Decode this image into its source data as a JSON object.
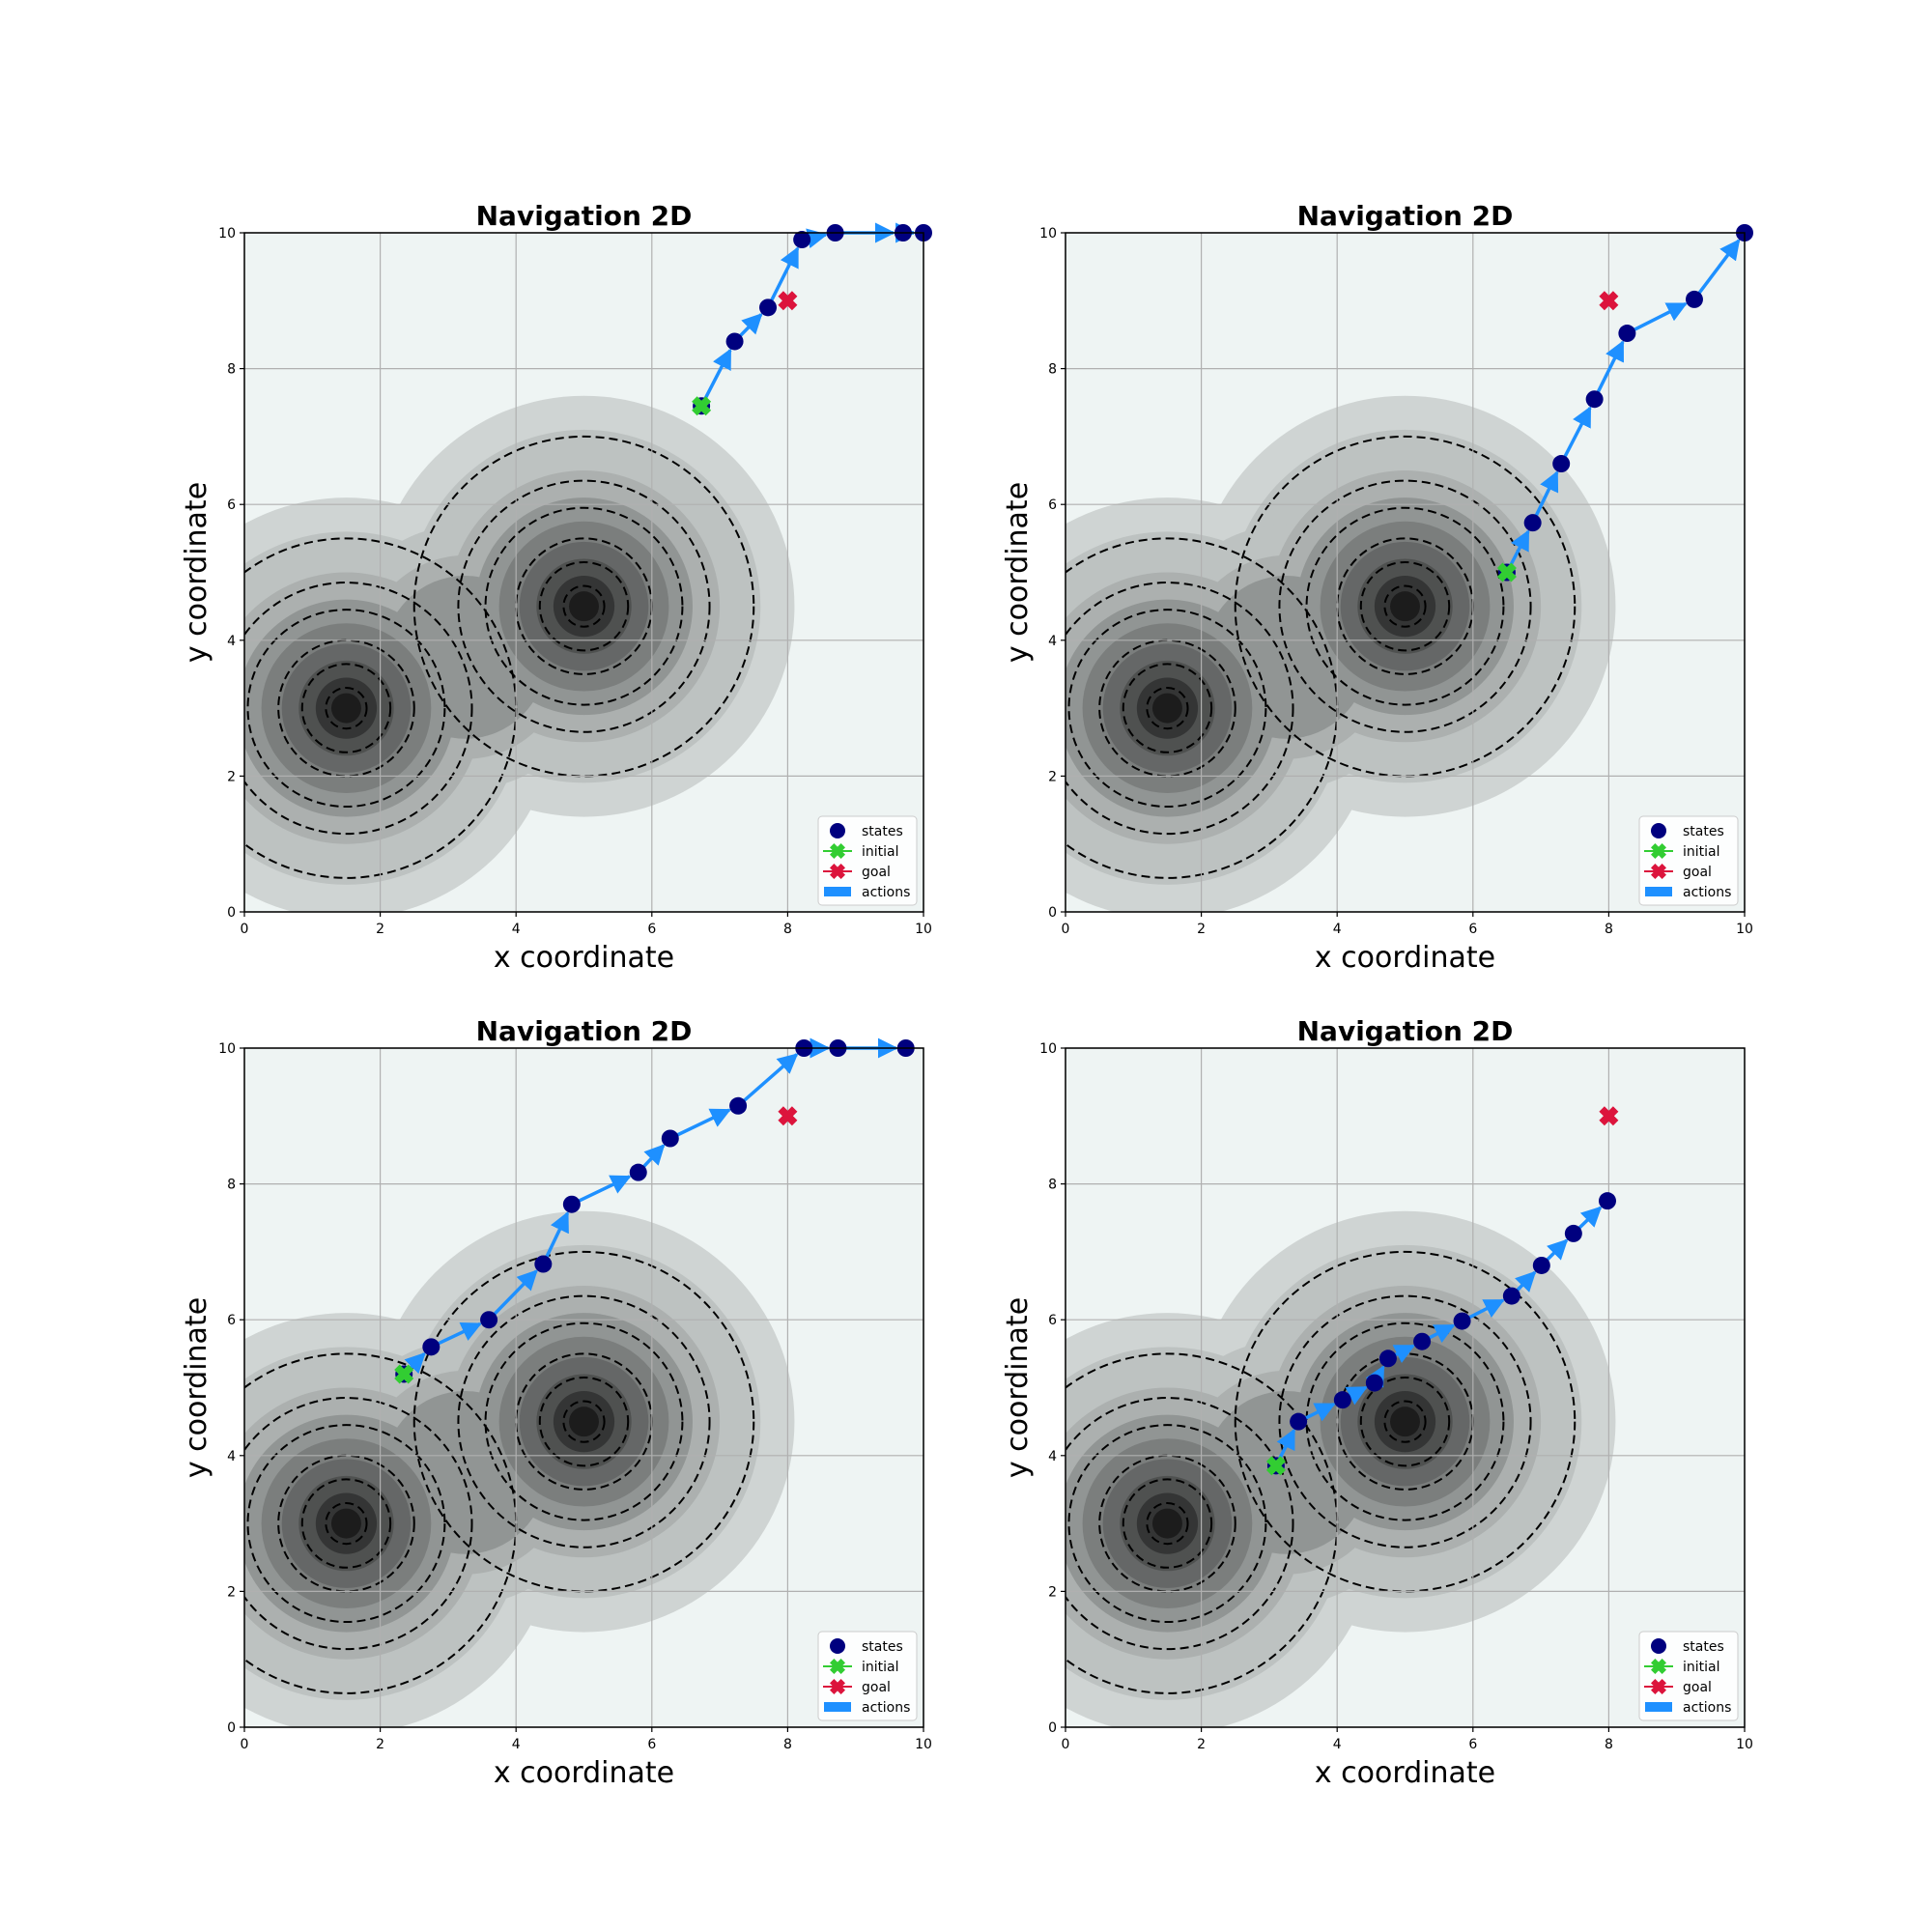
{
  "figure": {
    "background": "#ffffff",
    "colors": {
      "plot_background": "#eef4f3",
      "contour_low": "#eef4f3",
      "contour_high": "#111111",
      "grid": "#b0b0b0",
      "contour_line": "#000000",
      "states": "#00007f",
      "initial": "#32cd32",
      "goal": "#dc143c",
      "actions": "#1e90ff"
    }
  },
  "chart_data": [
    {
      "type": "scatter",
      "title": "Navigation 2D",
      "xlabel": "x coordinate",
      "ylabel": "y coordinate",
      "xlim": [
        0,
        10
      ],
      "ylim": [
        0,
        10
      ],
      "xticks": [
        "0",
        "2",
        "4",
        "6",
        "8",
        "10"
      ],
      "yticks": [
        "0",
        "2",
        "4",
        "6",
        "8",
        "10"
      ],
      "grid": true,
      "legend": {
        "placement": "lower-right",
        "entries": [
          "states",
          "initial",
          "goal",
          "actions"
        ]
      },
      "obstacles": [
        {
          "center": [
            1.5,
            3.0
          ],
          "radii": [
            0.3,
            0.65,
            1.0,
            1.45,
            1.85,
            2.5
          ]
        },
        {
          "center": [
            5.0,
            4.5
          ],
          "radii": [
            0.3,
            0.65,
            1.0,
            1.45,
            1.85,
            2.5
          ]
        }
      ],
      "series": [
        {
          "name": "states",
          "x": [
            6.73,
            7.22,
            7.71,
            8.21,
            8.7,
            9.7,
            10.0
          ],
          "y": [
            7.45,
            8.4,
            8.9,
            9.9,
            10.0,
            10.0,
            10.0
          ]
        },
        {
          "name": "initial",
          "x": [
            6.73
          ],
          "y": [
            7.45
          ]
        },
        {
          "name": "goal",
          "x": [
            8.0
          ],
          "y": [
            9.0
          ]
        }
      ]
    },
    {
      "type": "scatter",
      "title": "Navigation 2D",
      "xlabel": "x coordinate",
      "ylabel": "y coordinate",
      "xlim": [
        0,
        10
      ],
      "ylim": [
        0,
        10
      ],
      "xticks": [
        "0",
        "2",
        "4",
        "6",
        "8",
        "10"
      ],
      "yticks": [
        "0",
        "2",
        "4",
        "6",
        "8",
        "10"
      ],
      "grid": true,
      "legend": {
        "placement": "lower-right",
        "entries": [
          "states",
          "initial",
          "goal",
          "actions"
        ]
      },
      "obstacles": [
        {
          "center": [
            1.5,
            3.0
          ],
          "radii": [
            0.3,
            0.65,
            1.0,
            1.45,
            1.85,
            2.5
          ]
        },
        {
          "center": [
            5.0,
            4.5
          ],
          "radii": [
            0.3,
            0.65,
            1.0,
            1.45,
            1.85,
            2.5
          ]
        }
      ],
      "series": [
        {
          "name": "states",
          "x": [
            6.5,
            6.88,
            7.3,
            7.79,
            8.27,
            9.26,
            10.0
          ],
          "y": [
            5.0,
            5.73,
            6.6,
            7.55,
            8.52,
            9.02,
            10.0
          ]
        },
        {
          "name": "initial",
          "x": [
            6.5
          ],
          "y": [
            5.0
          ]
        },
        {
          "name": "goal",
          "x": [
            8.0
          ],
          "y": [
            9.0
          ]
        }
      ]
    },
    {
      "type": "scatter",
      "title": "Navigation 2D",
      "xlabel": "x coordinate",
      "ylabel": "y coordinate",
      "xlim": [
        0,
        10
      ],
      "ylim": [
        0,
        10
      ],
      "xticks": [
        "0",
        "2",
        "4",
        "6",
        "8",
        "10"
      ],
      "yticks": [
        "0",
        "2",
        "4",
        "6",
        "8",
        "10"
      ],
      "grid": true,
      "legend": {
        "placement": "lower-right",
        "entries": [
          "states",
          "initial",
          "goal",
          "actions"
        ]
      },
      "obstacles": [
        {
          "center": [
            1.5,
            3.0
          ],
          "radii": [
            0.3,
            0.65,
            1.0,
            1.45,
            1.85,
            2.5
          ]
        },
        {
          "center": [
            5.0,
            4.5
          ],
          "radii": [
            0.3,
            0.65,
            1.0,
            1.45,
            1.85,
            2.5
          ]
        }
      ],
      "series": [
        {
          "name": "states",
          "x": [
            2.35,
            2.75,
            3.6,
            4.4,
            4.82,
            5.8,
            6.27,
            7.27,
            8.24,
            8.74,
            9.74
          ],
          "y": [
            5.2,
            5.6,
            6.0,
            6.82,
            7.7,
            8.17,
            8.67,
            9.15,
            10.0,
            10.0,
            10.0
          ]
        },
        {
          "name": "initial",
          "x": [
            2.35
          ],
          "y": [
            5.2
          ]
        },
        {
          "name": "goal",
          "x": [
            8.0
          ],
          "y": [
            9.0
          ]
        }
      ]
    },
    {
      "type": "scatter",
      "title": "Navigation 2D",
      "xlabel": "x coordinate",
      "ylabel": "y coordinate",
      "xlim": [
        0,
        10
      ],
      "ylim": [
        0,
        10
      ],
      "xticks": [
        "0",
        "2",
        "4",
        "6",
        "8",
        "10"
      ],
      "yticks": [
        "0",
        "2",
        "4",
        "6",
        "8",
        "10"
      ],
      "grid": true,
      "legend": {
        "placement": "lower-right",
        "entries": [
          "states",
          "initial",
          "goal",
          "actions"
        ]
      },
      "obstacles": [
        {
          "center": [
            1.5,
            3.0
          ],
          "radii": [
            0.3,
            0.65,
            1.0,
            1.45,
            1.85,
            2.5
          ]
        },
        {
          "center": [
            5.0,
            4.5
          ],
          "radii": [
            0.3,
            0.65,
            1.0,
            1.45,
            1.85,
            2.5
          ]
        }
      ],
      "series": [
        {
          "name": "states",
          "x": [
            3.1,
            3.43,
            4.08,
            4.55,
            4.75,
            5.25,
            5.84,
            6.57,
            7.01,
            7.48,
            7.98
          ],
          "y": [
            3.85,
            4.5,
            4.82,
            5.07,
            5.43,
            5.68,
            5.98,
            6.35,
            6.8,
            7.27,
            7.75
          ]
        },
        {
          "name": "initial",
          "x": [
            3.1
          ],
          "y": [
            3.85
          ]
        },
        {
          "name": "goal",
          "x": [
            8.0
          ],
          "y": [
            9.0
          ]
        }
      ]
    }
  ]
}
